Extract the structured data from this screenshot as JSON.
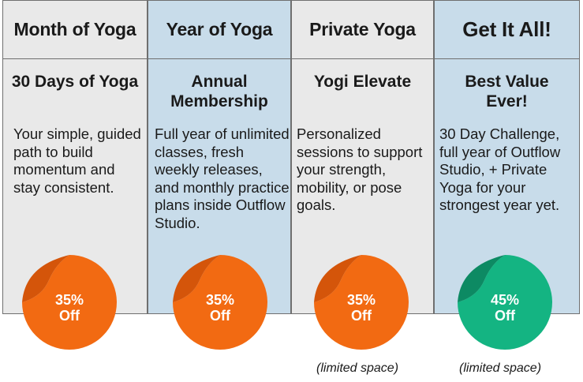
{
  "plans": [
    {
      "header": "Month of Yoga",
      "title": "30 Days of Yoga",
      "description": "Your simple, guided path to build momentum and stay consistent.",
      "badge_percent": "35%",
      "badge_off": "Off",
      "badge_color": "#f26a12",
      "badge_fold_color": "#d4550a",
      "note": ""
    },
    {
      "header": "Year of Yoga",
      "title": "Annual Membership",
      "description": "Full year of unlimited classes, fresh weekly releases, and monthly practice plans inside Outflow Studio.",
      "badge_percent": "35%",
      "badge_off": "Off",
      "badge_color": "#f26a12",
      "badge_fold_color": "#d4550a",
      "note": ""
    },
    {
      "header": "Private Yoga",
      "title": "Yogi Elevate",
      "description": "Personalized sessions to support your strength, mobility, or pose goals.",
      "badge_percent": "35%",
      "badge_off": "Off",
      "badge_color": "#f26a12",
      "badge_fold_color": "#d4550a",
      "note": "(limited space)"
    },
    {
      "header": "Get It All!",
      "title": "Best Value Ever!",
      "description": "30 Day Challenge, full year of Outflow Studio, + Private Yoga for your strongest year yet.",
      "badge_percent": "45%",
      "badge_off": "Off",
      "badge_color": "#14b482",
      "badge_fold_color": "#0d8a63",
      "note": "(limited space)"
    }
  ],
  "colors": {
    "grey_column": "#e9e9e9",
    "blue_column": "#c8dcea",
    "border": "#6f6f6f"
  }
}
